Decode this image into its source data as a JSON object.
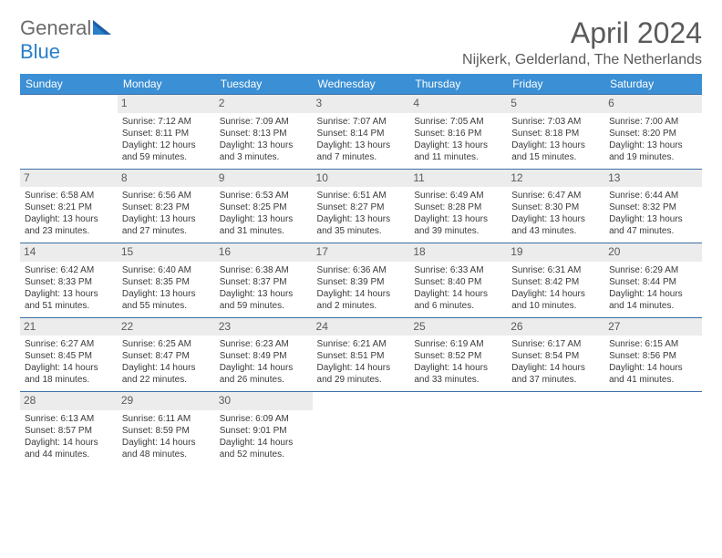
{
  "brand": {
    "part1": "General",
    "part2": "Blue"
  },
  "title": "April 2024",
  "location": "Nijkerk, Gelderland, The Netherlands",
  "colors": {
    "header_bg": "#3b8fd4",
    "header_fg": "#ffffff",
    "daynum_bg": "#ececec",
    "row_border": "#3b6fa5",
    "text": "#3a3a3a",
    "title_color": "#5a5a5a",
    "brand_gray": "#6b6b6b",
    "brand_blue": "#2a7fc9"
  },
  "days_of_week": [
    "Sunday",
    "Monday",
    "Tuesday",
    "Wednesday",
    "Thursday",
    "Friday",
    "Saturday"
  ],
  "weeks": [
    [
      null,
      {
        "n": "1",
        "sr": "Sunrise: 7:12 AM",
        "ss": "Sunset: 8:11 PM",
        "d1": "Daylight: 12 hours",
        "d2": "and 59 minutes."
      },
      {
        "n": "2",
        "sr": "Sunrise: 7:09 AM",
        "ss": "Sunset: 8:13 PM",
        "d1": "Daylight: 13 hours",
        "d2": "and 3 minutes."
      },
      {
        "n": "3",
        "sr": "Sunrise: 7:07 AM",
        "ss": "Sunset: 8:14 PM",
        "d1": "Daylight: 13 hours",
        "d2": "and 7 minutes."
      },
      {
        "n": "4",
        "sr": "Sunrise: 7:05 AM",
        "ss": "Sunset: 8:16 PM",
        "d1": "Daylight: 13 hours",
        "d2": "and 11 minutes."
      },
      {
        "n": "5",
        "sr": "Sunrise: 7:03 AM",
        "ss": "Sunset: 8:18 PM",
        "d1": "Daylight: 13 hours",
        "d2": "and 15 minutes."
      },
      {
        "n": "6",
        "sr": "Sunrise: 7:00 AM",
        "ss": "Sunset: 8:20 PM",
        "d1": "Daylight: 13 hours",
        "d2": "and 19 minutes."
      }
    ],
    [
      {
        "n": "7",
        "sr": "Sunrise: 6:58 AM",
        "ss": "Sunset: 8:21 PM",
        "d1": "Daylight: 13 hours",
        "d2": "and 23 minutes."
      },
      {
        "n": "8",
        "sr": "Sunrise: 6:56 AM",
        "ss": "Sunset: 8:23 PM",
        "d1": "Daylight: 13 hours",
        "d2": "and 27 minutes."
      },
      {
        "n": "9",
        "sr": "Sunrise: 6:53 AM",
        "ss": "Sunset: 8:25 PM",
        "d1": "Daylight: 13 hours",
        "d2": "and 31 minutes."
      },
      {
        "n": "10",
        "sr": "Sunrise: 6:51 AM",
        "ss": "Sunset: 8:27 PM",
        "d1": "Daylight: 13 hours",
        "d2": "and 35 minutes."
      },
      {
        "n": "11",
        "sr": "Sunrise: 6:49 AM",
        "ss": "Sunset: 8:28 PM",
        "d1": "Daylight: 13 hours",
        "d2": "and 39 minutes."
      },
      {
        "n": "12",
        "sr": "Sunrise: 6:47 AM",
        "ss": "Sunset: 8:30 PM",
        "d1": "Daylight: 13 hours",
        "d2": "and 43 minutes."
      },
      {
        "n": "13",
        "sr": "Sunrise: 6:44 AM",
        "ss": "Sunset: 8:32 PM",
        "d1": "Daylight: 13 hours",
        "d2": "and 47 minutes."
      }
    ],
    [
      {
        "n": "14",
        "sr": "Sunrise: 6:42 AM",
        "ss": "Sunset: 8:33 PM",
        "d1": "Daylight: 13 hours",
        "d2": "and 51 minutes."
      },
      {
        "n": "15",
        "sr": "Sunrise: 6:40 AM",
        "ss": "Sunset: 8:35 PM",
        "d1": "Daylight: 13 hours",
        "d2": "and 55 minutes."
      },
      {
        "n": "16",
        "sr": "Sunrise: 6:38 AM",
        "ss": "Sunset: 8:37 PM",
        "d1": "Daylight: 13 hours",
        "d2": "and 59 minutes."
      },
      {
        "n": "17",
        "sr": "Sunrise: 6:36 AM",
        "ss": "Sunset: 8:39 PM",
        "d1": "Daylight: 14 hours",
        "d2": "and 2 minutes."
      },
      {
        "n": "18",
        "sr": "Sunrise: 6:33 AM",
        "ss": "Sunset: 8:40 PM",
        "d1": "Daylight: 14 hours",
        "d2": "and 6 minutes."
      },
      {
        "n": "19",
        "sr": "Sunrise: 6:31 AM",
        "ss": "Sunset: 8:42 PM",
        "d1": "Daylight: 14 hours",
        "d2": "and 10 minutes."
      },
      {
        "n": "20",
        "sr": "Sunrise: 6:29 AM",
        "ss": "Sunset: 8:44 PM",
        "d1": "Daylight: 14 hours",
        "d2": "and 14 minutes."
      }
    ],
    [
      {
        "n": "21",
        "sr": "Sunrise: 6:27 AM",
        "ss": "Sunset: 8:45 PM",
        "d1": "Daylight: 14 hours",
        "d2": "and 18 minutes."
      },
      {
        "n": "22",
        "sr": "Sunrise: 6:25 AM",
        "ss": "Sunset: 8:47 PM",
        "d1": "Daylight: 14 hours",
        "d2": "and 22 minutes."
      },
      {
        "n": "23",
        "sr": "Sunrise: 6:23 AM",
        "ss": "Sunset: 8:49 PM",
        "d1": "Daylight: 14 hours",
        "d2": "and 26 minutes."
      },
      {
        "n": "24",
        "sr": "Sunrise: 6:21 AM",
        "ss": "Sunset: 8:51 PM",
        "d1": "Daylight: 14 hours",
        "d2": "and 29 minutes."
      },
      {
        "n": "25",
        "sr": "Sunrise: 6:19 AM",
        "ss": "Sunset: 8:52 PM",
        "d1": "Daylight: 14 hours",
        "d2": "and 33 minutes."
      },
      {
        "n": "26",
        "sr": "Sunrise: 6:17 AM",
        "ss": "Sunset: 8:54 PM",
        "d1": "Daylight: 14 hours",
        "d2": "and 37 minutes."
      },
      {
        "n": "27",
        "sr": "Sunrise: 6:15 AM",
        "ss": "Sunset: 8:56 PM",
        "d1": "Daylight: 14 hours",
        "d2": "and 41 minutes."
      }
    ],
    [
      {
        "n": "28",
        "sr": "Sunrise: 6:13 AM",
        "ss": "Sunset: 8:57 PM",
        "d1": "Daylight: 14 hours",
        "d2": "and 44 minutes."
      },
      {
        "n": "29",
        "sr": "Sunrise: 6:11 AM",
        "ss": "Sunset: 8:59 PM",
        "d1": "Daylight: 14 hours",
        "d2": "and 48 minutes."
      },
      {
        "n": "30",
        "sr": "Sunrise: 6:09 AM",
        "ss": "Sunset: 9:01 PM",
        "d1": "Daylight: 14 hours",
        "d2": "and 52 minutes."
      },
      null,
      null,
      null,
      null
    ]
  ]
}
